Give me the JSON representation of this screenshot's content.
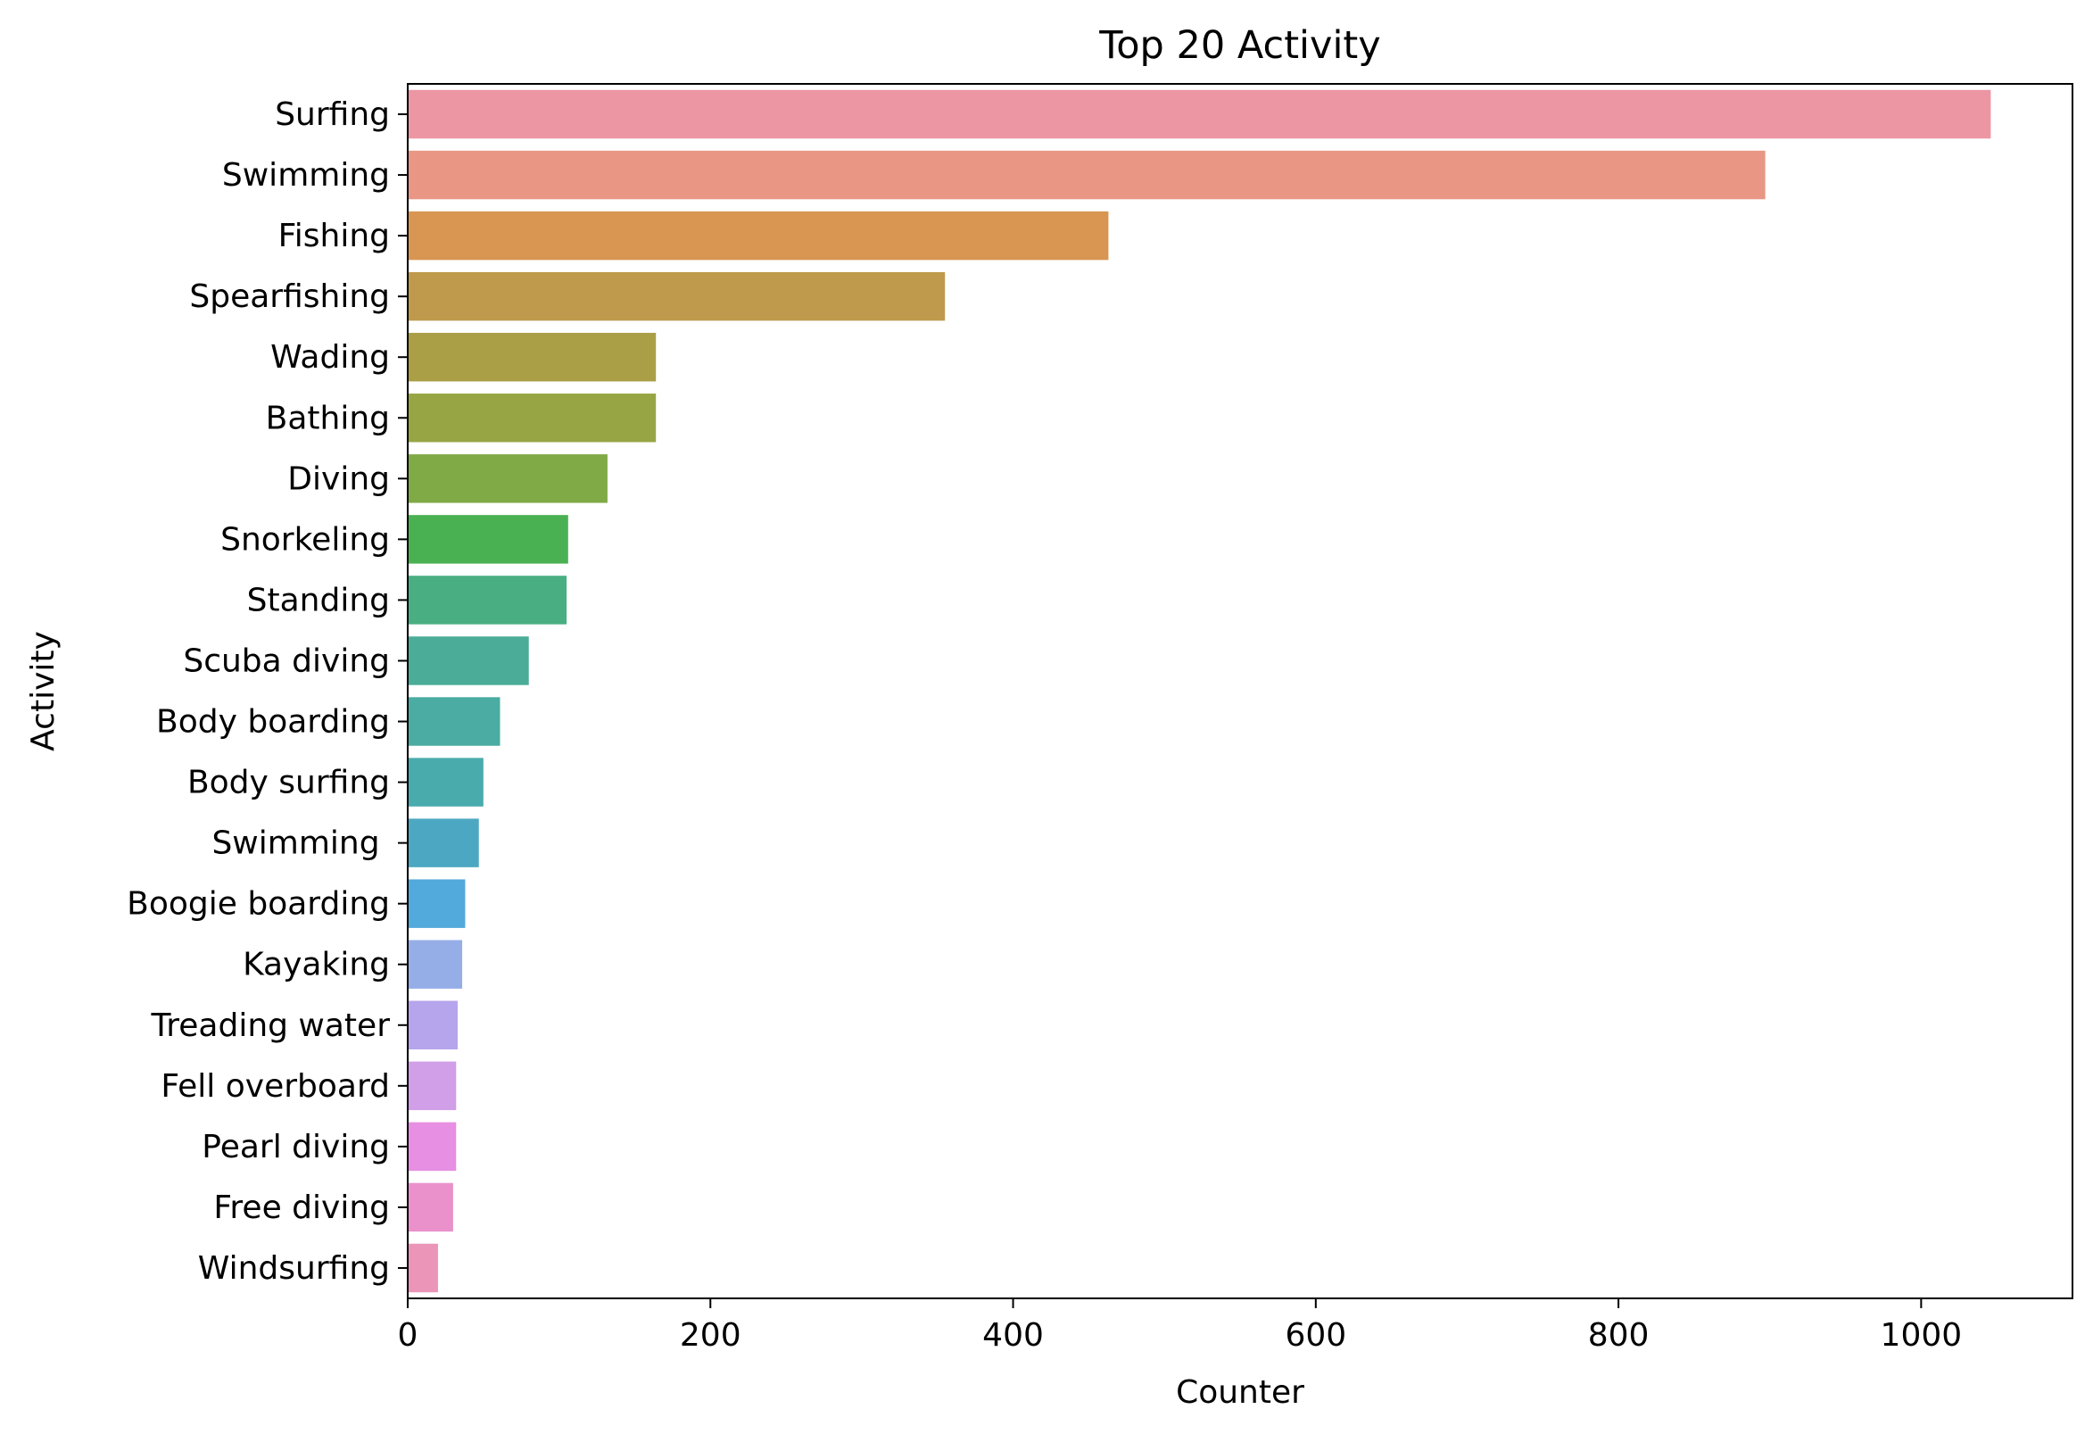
{
  "chart_data": {
    "type": "bar",
    "orientation": "horizontal",
    "title": "Top 20 Activity",
    "xlabel": "Counter",
    "ylabel": "Activity",
    "xlim": [
      0,
      1100
    ],
    "xticks": [
      0,
      200,
      400,
      600,
      800,
      1000
    ],
    "grid": false,
    "legend": "none",
    "categories": [
      "Surfing",
      "Swimming",
      "Fishing",
      "Spearfishing",
      "Wading",
      "Bathing",
      "Diving",
      "Snorkeling",
      "Standing",
      "Scuba diving",
      "Body boarding",
      "Body surfing",
      "Swimming ",
      "Boogie boarding",
      "Kayaking",
      "Treading water",
      "Fell overboard",
      "Pearl diving",
      "Free diving",
      "Windsurfing"
    ],
    "values": [
      1046,
      897,
      463,
      355,
      164,
      164,
      132,
      106,
      105,
      80,
      61,
      50,
      47,
      38,
      36,
      33,
      32,
      32,
      30,
      20
    ],
    "colors": [
      "#ec96a3",
      "#e99685",
      "#d89652",
      "#bf9a4c",
      "#aa9f46",
      "#98a545",
      "#80aa46",
      "#4ab152",
      "#49ae82",
      "#4bac98",
      "#4aaca2",
      "#4aabad",
      "#4ca8c2",
      "#52a9dc",
      "#96aee8",
      "#b6a5ec",
      "#d19ee8",
      "#e78fe3",
      "#ea91cc",
      "#eb95b8"
    ]
  }
}
